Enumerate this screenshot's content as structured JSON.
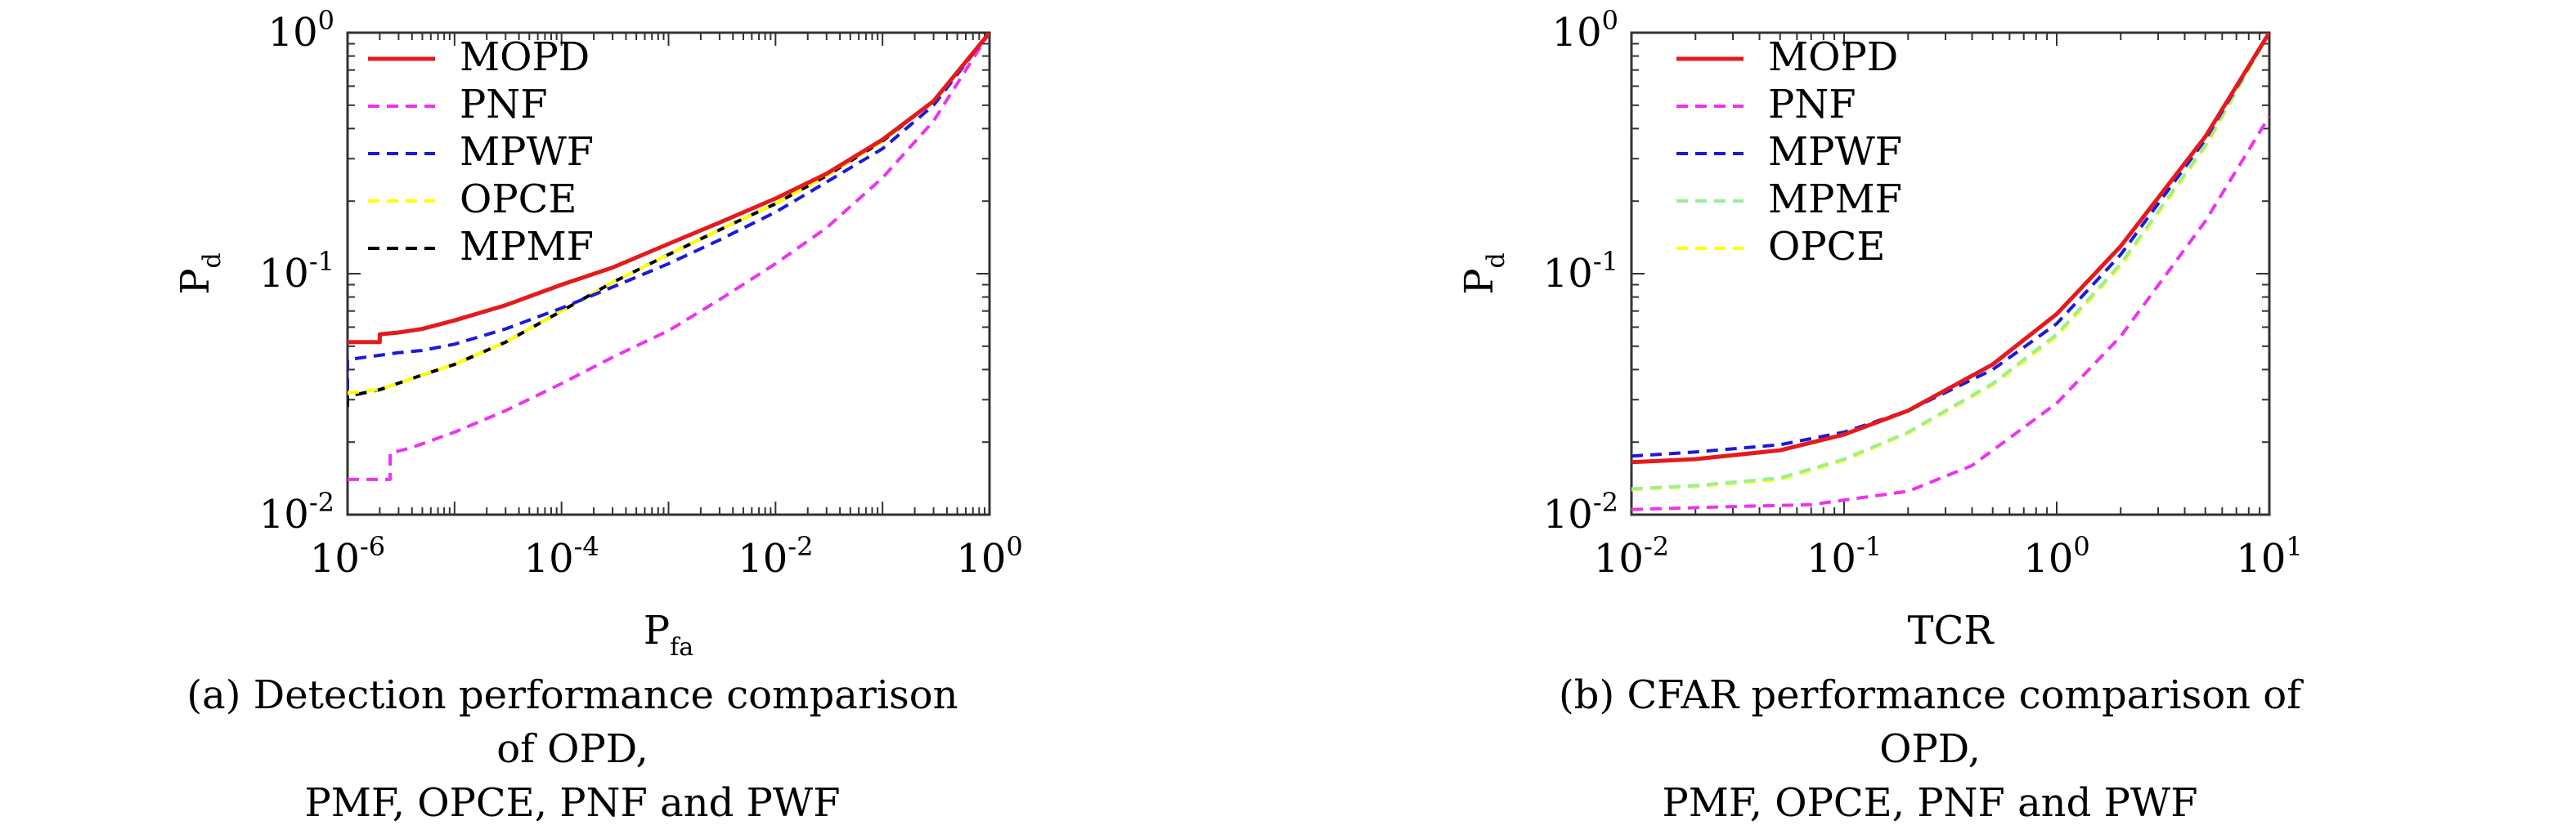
{
  "chart_data": [
    {
      "type": "line",
      "xlabel": "P",
      "xlabel_sub": "fa",
      "ylabel": "P",
      "ylabel_sub": "d",
      "x_scale": "log",
      "y_scale": "log",
      "xlim": [
        1e-06,
        1
      ],
      "ylim": [
        0.01,
        1
      ],
      "x_ticks": [
        {
          "base": "10",
          "exp": "-6",
          "value": 1e-06
        },
        {
          "base": "10",
          "exp": "-4",
          "value": 0.0001
        },
        {
          "base": "10",
          "exp": "-2",
          "value": 0.01
        },
        {
          "base": "10",
          "exp": "0",
          "value": 1
        }
      ],
      "y_ticks": [
        {
          "base": "10",
          "exp": "-2",
          "value": 0.01
        },
        {
          "base": "10",
          "exp": "-1",
          "value": 0.1
        },
        {
          "base": "10",
          "exp": "0",
          "value": 1
        }
      ],
      "grid": false,
      "legend_position": "top-left",
      "series": [
        {
          "name": "MOPD",
          "color": "#e41a1c",
          "dash": "solid",
          "x": [
            1e-06,
            2e-06,
            2e-06,
            3e-06,
            5e-06,
            1e-05,
            3e-05,
            0.0001,
            0.0003,
            0.001,
            0.003,
            0.01,
            0.03,
            0.1,
            0.3,
            1
          ],
          "y": [
            0.052,
            0.052,
            0.056,
            0.057,
            0.059,
            0.064,
            0.074,
            0.09,
            0.106,
            0.133,
            0.163,
            0.205,
            0.26,
            0.36,
            0.52,
            1.0
          ]
        },
        {
          "name": "PNF",
          "color": "#ee33ee",
          "dash": "dash",
          "x": [
            1e-06,
            2.5e-06,
            2.5e-06,
            4e-06,
            1e-05,
            3e-05,
            0.0001,
            0.0003,
            0.001,
            0.003,
            0.01,
            0.03,
            0.1,
            0.3,
            1
          ],
          "y": [
            0.014,
            0.014,
            0.018,
            0.019,
            0.022,
            0.027,
            0.035,
            0.045,
            0.058,
            0.078,
            0.11,
            0.155,
            0.25,
            0.43,
            1.0
          ]
        },
        {
          "name": "MPWF",
          "color": "#1a1adb",
          "dash": "dash",
          "x": [
            1e-06,
            1e-06,
            3e-06,
            5e-06,
            1e-05,
            3e-05,
            0.0001,
            0.0003,
            0.001,
            0.003,
            0.01,
            0.03,
            0.1,
            0.3,
            1
          ],
          "y": [
            0.033,
            0.044,
            0.047,
            0.048,
            0.051,
            0.059,
            0.072,
            0.088,
            0.11,
            0.138,
            0.18,
            0.24,
            0.33,
            0.5,
            1.0
          ]
        },
        {
          "name": "OPCE",
          "color": "#ffff00",
          "dash": "dash",
          "x": [
            1e-06,
            2e-06,
            5e-06,
            1e-05,
            3e-05,
            0.0001,
            0.0003,
            0.001,
            0.003,
            0.01,
            0.03,
            0.1,
            0.3,
            1
          ],
          "y": [
            0.032,
            0.033,
            0.038,
            0.042,
            0.052,
            0.07,
            0.092,
            0.12,
            0.152,
            0.195,
            0.255,
            0.355,
            0.52,
            1.0
          ]
        },
        {
          "name": "MPMF",
          "color": "#000000",
          "dash": "dash",
          "x": [
            1e-06,
            1e-06,
            2e-06,
            5e-06,
            1e-05,
            3e-05,
            0.0001,
            0.0003,
            0.001,
            0.003,
            0.01,
            0.03,
            0.1,
            0.3,
            1
          ],
          "y": [
            0.028,
            0.031,
            0.033,
            0.038,
            0.042,
            0.052,
            0.07,
            0.092,
            0.12,
            0.152,
            0.195,
            0.255,
            0.355,
            0.52,
            1.0
          ]
        }
      ],
      "caption": "(a)  Detection performance comparison of OPD,\nPMF, OPCE, PNF and PWF"
    },
    {
      "type": "line",
      "xlabel": "TCR",
      "xlabel_sub": "",
      "ylabel": "P",
      "ylabel_sub": "d",
      "x_scale": "log",
      "y_scale": "log",
      "xlim": [
        0.01,
        10
      ],
      "ylim": [
        0.01,
        1
      ],
      "x_ticks": [
        {
          "base": "10",
          "exp": "-2",
          "value": 0.01
        },
        {
          "base": "10",
          "exp": "-1",
          "value": 0.1
        },
        {
          "base": "10",
          "exp": "0",
          "value": 1
        },
        {
          "base": "10",
          "exp": "1",
          "value": 10
        }
      ],
      "y_ticks": [
        {
          "base": "10",
          "exp": "-2",
          "value": 0.01
        },
        {
          "base": "10",
          "exp": "-1",
          "value": 0.1
        },
        {
          "base": "10",
          "exp": "0",
          "value": 1
        }
      ],
      "grid": false,
      "legend_position": "top-left",
      "series": [
        {
          "name": "MOPD",
          "color": "#e41a1c",
          "dash": "solid",
          "x": [
            0.01,
            0.02,
            0.05,
            0.1,
            0.2,
            0.5,
            1,
            2,
            5,
            10
          ],
          "y": [
            0.0165,
            0.017,
            0.0185,
            0.0215,
            0.027,
            0.042,
            0.068,
            0.13,
            0.37,
            1.0
          ]
        },
        {
          "name": "PNF",
          "color": "#ee33ee",
          "dash": "dash",
          "x": [
            0.01,
            0.03,
            0.07,
            0.1,
            0.2,
            0.4,
            0.7,
            1,
            2,
            5,
            10
          ],
          "y": [
            0.0105,
            0.0108,
            0.011,
            0.0115,
            0.0125,
            0.016,
            0.023,
            0.029,
            0.055,
            0.165,
            0.45
          ]
        },
        {
          "name": "MPWF",
          "color": "#1a1adb",
          "dash": "dash",
          "x": [
            0.01,
            0.02,
            0.05,
            0.1,
            0.2,
            0.5,
            1,
            2,
            5,
            10
          ],
          "y": [
            0.0175,
            0.0182,
            0.0195,
            0.022,
            0.027,
            0.04,
            0.062,
            0.12,
            0.36,
            1.0
          ]
        },
        {
          "name": "MPMF",
          "color": "#99ee99",
          "dash": "dash",
          "x": [
            0.01,
            0.02,
            0.05,
            0.1,
            0.2,
            0.5,
            1,
            2,
            5,
            10
          ],
          "y": [
            0.0128,
            0.0132,
            0.0142,
            0.017,
            0.022,
            0.035,
            0.056,
            0.11,
            0.34,
            1.0
          ]
        },
        {
          "name": "OPCE",
          "color": "#ffff00",
          "dash": "dash",
          "x": [
            0.01,
            0.02,
            0.05,
            0.1,
            0.2,
            0.5,
            1,
            2,
            5,
            10
          ],
          "y": [
            0.0127,
            0.0131,
            0.014,
            0.0168,
            0.0218,
            0.0345,
            0.055,
            0.108,
            0.335,
            1.0
          ]
        }
      ],
      "caption": "(b) CFAR performance comparison of OPD,\nPMF, OPCE, PNF and PWF"
    }
  ]
}
